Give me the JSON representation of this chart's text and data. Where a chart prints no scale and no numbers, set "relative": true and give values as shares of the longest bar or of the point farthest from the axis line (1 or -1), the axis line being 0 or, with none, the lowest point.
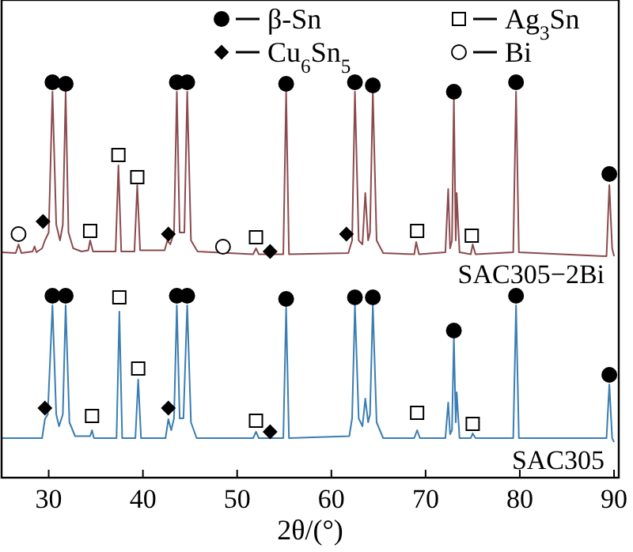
{
  "chart_data": {
    "type": "line",
    "xlabel": "2θ/(°)",
    "relative": true,
    "xlim": [
      25,
      90.5
    ],
    "xticks": [
      30,
      40,
      50,
      60,
      70,
      80,
      90
    ],
    "tick_labels": "x",
    "legend": "top",
    "grid": false,
    "series": [
      {
        "name": "SAC305−2Bi",
        "color": "#8b4a4e",
        "x": [
          25,
          26.5,
          26.8,
          27.1,
          28.3,
          28.5,
          28.7,
          29.3,
          29.6,
          30.0,
          30.4,
          30.8,
          31.2,
          31.5,
          31.8,
          32.1,
          32.6,
          33.5,
          34.2,
          34.4,
          34.7,
          37.1,
          37.4,
          37.7,
          39.1,
          39.4,
          39.7,
          42.3,
          42.6,
          42.9,
          43.3,
          43.6,
          43.9,
          44.4,
          44.7,
          45.1,
          45.8,
          51.7,
          52.0,
          52.3,
          53.3,
          53.5,
          53.7,
          54.9,
          55.2,
          55.5,
          61.8,
          62.2,
          62.5,
          62.9,
          63.3,
          63.6,
          63.9,
          64.1,
          64.4,
          64.8,
          65.5,
          68.8,
          69.0,
          69.3,
          72.1,
          72.4,
          72.6,
          72.8,
          73.0,
          73.2,
          73.3,
          73.6,
          74.8,
          75.0,
          75.3,
          79.3,
          79.6,
          79.9,
          89.2,
          89.5,
          89.8,
          90
        ],
        "values": [
          0.57,
          0.568,
          0.59,
          0.568,
          0.572,
          0.585,
          0.57,
          0.58,
          0.6,
          0.62,
          0.976,
          0.64,
          0.6,
          0.64,
          0.976,
          0.62,
          0.58,
          0.572,
          0.575,
          0.6,
          0.572,
          0.572,
          0.79,
          0.572,
          0.572,
          0.74,
          0.575,
          0.575,
          0.6,
          0.59,
          0.62,
          0.976,
          0.62,
          0.62,
          0.976,
          0.6,
          0.572,
          0.565,
          0.58,
          0.565,
          0.565,
          0.57,
          0.565,
          0.565,
          0.976,
          0.565,
          0.568,
          0.6,
          0.976,
          0.6,
          0.59,
          0.72,
          0.6,
          0.62,
          0.976,
          0.6,
          0.568,
          0.565,
          0.596,
          0.565,
          0.57,
          0.73,
          0.58,
          0.6,
          0.96,
          0.6,
          0.72,
          0.57,
          0.565,
          0.59,
          0.565,
          0.57,
          0.976,
          0.57,
          0.56,
          0.74,
          0.58,
          0.56
        ]
      },
      {
        "name": "SAC305",
        "color": "#3a7db2",
        "x": [
          25,
          29.3,
          29.6,
          29.9,
          30.4,
          30.8,
          31.1,
          31.5,
          31.8,
          32.2,
          32.8,
          34.4,
          34.6,
          34.8,
          37.2,
          37.5,
          37.8,
          39.2,
          39.5,
          39.8,
          42.4,
          42.7,
          43.0,
          43.3,
          43.6,
          43.9,
          44.3,
          44.7,
          45.1,
          45.7,
          51.7,
          52.0,
          52.3,
          54.9,
          55.2,
          55.5,
          61.9,
          62.2,
          62.5,
          62.9,
          63.3,
          63.6,
          63.9,
          64.1,
          64.4,
          64.8,
          65.5,
          68.8,
          69.1,
          69.4,
          72.1,
          72.4,
          72.6,
          72.8,
          73.0,
          73.2,
          73.3,
          73.6,
          74.8,
          75.0,
          75.3,
          79.3,
          79.6,
          79.9,
          89.2,
          89.5,
          89.8,
          90
        ],
        "values": [
          0.1,
          0.1,
          0.148,
          0.16,
          0.436,
          0.16,
          0.13,
          0.16,
          0.436,
          0.14,
          0.105,
          0.105,
          0.12,
          0.1,
          0.1,
          0.42,
          0.1,
          0.1,
          0.248,
          0.1,
          0.1,
          0.148,
          0.12,
          0.15,
          0.436,
          0.15,
          0.15,
          0.436,
          0.14,
          0.1,
          0.1,
          0.116,
          0.1,
          0.1,
          0.43,
          0.1,
          0.105,
          0.15,
          0.436,
          0.15,
          0.13,
          0.2,
          0.14,
          0.16,
          0.436,
          0.14,
          0.1,
          0.1,
          0.12,
          0.1,
          0.1,
          0.19,
          0.11,
          0.12,
          0.356,
          0.14,
          0.216,
          0.1,
          0.1,
          0.112,
          0.1,
          0.1,
          0.436,
          0.1,
          0.1,
          0.236,
          0.1,
          0.09
        ]
      },
      {
        "name": "β-Sn",
        "type": "scatter",
        "marker": "circle",
        "color": "#000000",
        "x": [
          30.4,
          31.8,
          43.6,
          44.7,
          55.2,
          62.5,
          64.4,
          73.0,
          79.6,
          89.5,
          30.4,
          31.8,
          43.6,
          44.7,
          55.2,
          62.5,
          64.4,
          73.0,
          79.6,
          89.5
        ],
        "values": [
          1.0,
          0.996,
          1.0,
          1.0,
          0.996,
          1.0,
          0.992,
          0.976,
          1.0,
          0.768,
          0.46,
          0.46,
          0.46,
          0.46,
          0.452,
          0.456,
          0.456,
          0.372,
          0.46,
          0.26
        ]
      },
      {
        "name": "Ag$_{3}$Sn",
        "type": "scatter",
        "marker": "square",
        "color": "#ffffff",
        "x": [
          34.4,
          37.4,
          39.4,
          52.0,
          69.1,
          74.9,
          34.6,
          37.5,
          39.5,
          52.0,
          69.1,
          75.0
        ],
        "values": [
          0.624,
          0.816,
          0.76,
          0.608,
          0.624,
          0.612,
          0.156,
          0.456,
          0.276,
          0.144,
          0.164,
          0.136
        ]
      },
      {
        "name": "Cu$_{6}$Sn$_{5}$",
        "type": "scatter",
        "marker": "diamond",
        "color": "#000000",
        "x": [
          29.4,
          42.7,
          53.5,
          61.6,
          29.6,
          42.7,
          53.5
        ],
        "values": [
          0.648,
          0.616,
          0.572,
          0.616,
          0.176,
          0.176,
          0.116
        ]
      },
      {
        "name": "Bi",
        "type": "scatter",
        "marker": "circle",
        "color": "#ffffff",
        "x": [
          26.8,
          48.5
        ],
        "values": [
          0.616,
          0.584
        ]
      }
    ]
  }
}
